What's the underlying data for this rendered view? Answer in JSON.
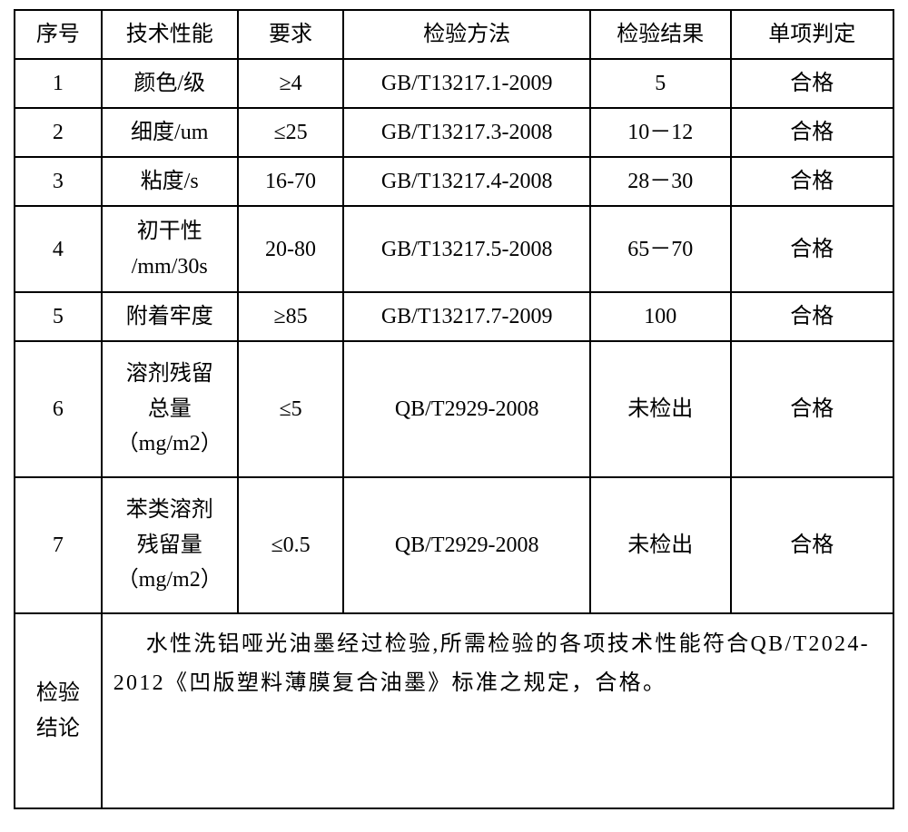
{
  "headers": {
    "col1": "序号",
    "col2": "技术性能",
    "col3": "要求",
    "col4": "检验方法",
    "col5": "检验结果",
    "col6": "单项判定"
  },
  "rows": [
    {
      "seq": "1",
      "spec": "颜色/级",
      "req": "≥4",
      "method": "GB/T13217.1-2009",
      "result": "5",
      "judgment": "合格"
    },
    {
      "seq": "2",
      "spec": "细度/um",
      "req": "≤25",
      "method": "GB/T13217.3-2008",
      "result": "10－12",
      "judgment": "合格"
    },
    {
      "seq": "3",
      "spec": "粘度/s",
      "req": "16-70",
      "method": "GB/T13217.4-2008",
      "result": "28－30",
      "judgment": "合格"
    },
    {
      "seq": "4",
      "spec_line1": "初干性",
      "spec_line2": "/mm/30s",
      "req": "20-80",
      "method": "GB/T13217.5-2008",
      "result": "65－70",
      "judgment": "合格"
    },
    {
      "seq": "5",
      "spec": "附着牢度",
      "req": "≥85",
      "method": "GB/T13217.7-2009",
      "result": "100",
      "judgment": "合格"
    },
    {
      "seq": "6",
      "spec_line1": "溶剂残留",
      "spec_line2": "总量",
      "spec_line3": "（mg/m2）",
      "req": "≤5",
      "method": "QB/T2929-2008",
      "result": "未检出",
      "judgment": "合格"
    },
    {
      "seq": "7",
      "spec_line1": "苯类溶剂",
      "spec_line2": "残留量",
      "spec_line3": "（mg/m2）",
      "req": "≤0.5",
      "method": "QB/T2929-2008",
      "result": "未检出",
      "judgment": "合格"
    }
  ],
  "conclusion": {
    "label_line1": "检验",
    "label_line2": "结论",
    "text": "水性洗铝哑光油墨经过检验,所需检验的各项技术性能符合QB/T2024-2012《凹版塑料薄膜复合油墨》标准之规定，合格。"
  },
  "colors": {
    "border": "#000000",
    "background": "#ffffff",
    "text": "#000000"
  },
  "font": {
    "family": "SimSun",
    "size_pt": 18
  }
}
